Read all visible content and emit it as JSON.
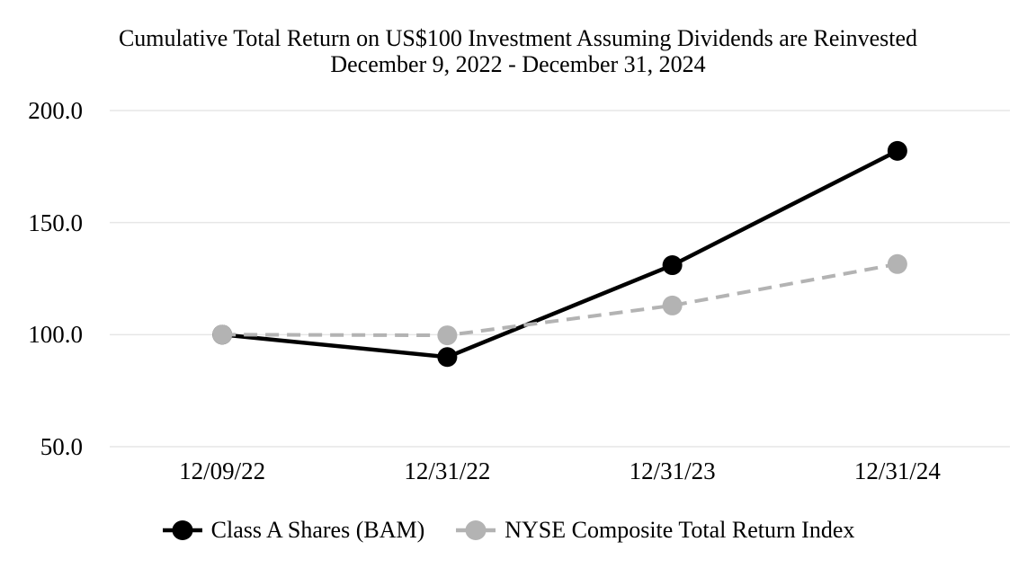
{
  "chart_data": {
    "type": "line",
    "title": "Cumulative Total Return on US$100 Investment Assuming Dividends are Reinvested",
    "subtitle": "December 9, 2022 - December 31, 2024",
    "categories": [
      "12/09/22",
      "12/31/22",
      "12/31/23",
      "12/31/24"
    ],
    "series": [
      {
        "name": "Class A Shares (BAM)",
        "values": [
          100.0,
          90.0,
          131.0,
          182.0
        ],
        "color": "#000000",
        "line_style": "solid"
      },
      {
        "name": "NYSE Composite Total Return Index",
        "values": [
          100.0,
          99.7,
          113.0,
          131.5
        ],
        "color": "#b3b3b3",
        "line_style": "dashed"
      }
    ],
    "y_ticks": [
      50.0,
      100.0,
      150.0,
      200.0
    ],
    "y_tick_labels": [
      "50.0",
      "100.0",
      "150.0",
      "200.0"
    ],
    "ylim": [
      50,
      200
    ],
    "xlabel": "",
    "ylabel": "",
    "grid": "horizontal",
    "gridline_color": "#e6e6e6",
    "legend_position": "bottom",
    "background_color": "#ffffff"
  }
}
